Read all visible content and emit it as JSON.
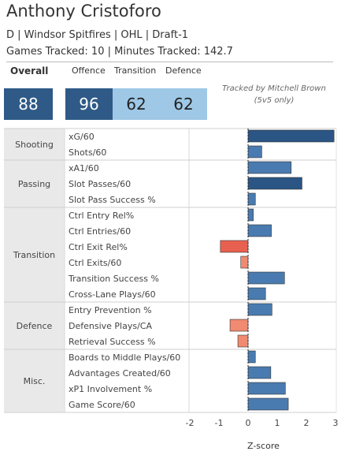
{
  "player": {
    "name": "Anthony Cristoforo",
    "info": "D | Windsor Spitfires | OHL | Draft-1",
    "tracking": "Games Tracked: 10 | Minutes Tracked: 142.7"
  },
  "ratings": {
    "overall_label": "Overall",
    "overall": "88",
    "offence_label": "Offence",
    "offence": "96",
    "transition_label": "Transition",
    "transition": "62",
    "defence_label": "Defence",
    "defence": "62"
  },
  "note": {
    "line1": "Tracked by Mitchell Brown",
    "line2": "(5v5 only)"
  },
  "colors": {
    "dark_blue": "#2f5a87",
    "light_blue": "#9ec8e6",
    "positive": "#4a7bb0",
    "strong_positive": "#2a5584",
    "negative": "#e8604f",
    "mild_negative": "#f08a70",
    "neutral": "#e8c8c8"
  },
  "chart_data": {
    "type": "bar",
    "orientation": "horizontal",
    "xlabel": "Z-score",
    "xlim": [
      -2.2,
      3.1
    ],
    "ticks": [
      "-2",
      "-1",
      "0",
      "1",
      "2",
      "3"
    ],
    "groups": [
      {
        "name": "Shooting",
        "metrics": [
          {
            "label": "xG/60",
            "value": 2.95
          },
          {
            "label": "Shots/60",
            "value": 0.47
          }
        ]
      },
      {
        "name": "Passing",
        "metrics": [
          {
            "label": "xA1/60",
            "value": 1.48
          },
          {
            "label": "Slot Passes/60",
            "value": 1.85
          },
          {
            "label": "Slot Pass Success %",
            "value": 0.25
          }
        ]
      },
      {
        "name": "Transition",
        "metrics": [
          {
            "label": "Ctrl Entry Rel%",
            "value": 0.18
          },
          {
            "label": "Ctrl Entries/60",
            "value": 0.8
          },
          {
            "label": "Ctrl Exit Rel%",
            "value": -0.95
          },
          {
            "label": "Ctrl Exits/60",
            "value": -0.25
          },
          {
            "label": "Transition Success %",
            "value": 1.25
          },
          {
            "label": "Cross-Lane Plays/60",
            "value": 0.6
          }
        ]
      },
      {
        "name": "Defence",
        "metrics": [
          {
            "label": "Entry Prevention %",
            "value": 0.82
          },
          {
            "label": "Defensive Plays/CA",
            "value": -0.62
          },
          {
            "label": "Retrieval Success %",
            "value": -0.35
          }
        ]
      },
      {
        "name": "Misc.",
        "metrics": [
          {
            "label": "Boards to Middle Plays/60",
            "value": 0.25
          },
          {
            "label": "Advantages Created/60",
            "value": 0.78
          },
          {
            "label": "xP1 Involvement %",
            "value": 1.28
          },
          {
            "label": "Game Score/60",
            "value": 1.38
          }
        ]
      }
    ]
  }
}
